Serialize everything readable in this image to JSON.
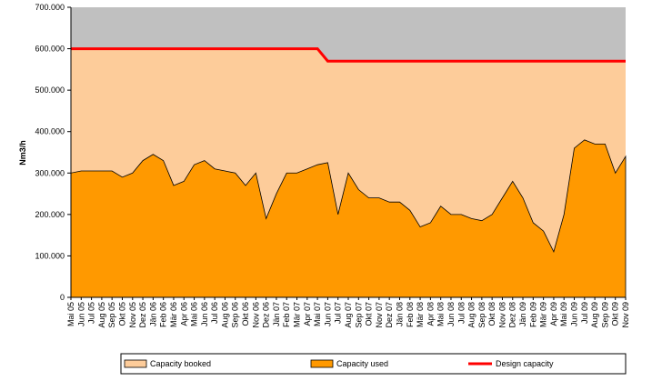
{
  "chart_data": {
    "type": "area",
    "y_label": "Nm3/h",
    "categories": [
      "Mai 05",
      "Jun 05",
      "Jul 05",
      "Aug 05",
      "Sep 05",
      "Okt 05",
      "Nov 05",
      "Dez 05",
      "Jän 06",
      "Feb 06",
      "Mär 06",
      "Apr 06",
      "Mai 06",
      "Jun 06",
      "Jul 06",
      "Aug 06",
      "Sep 06",
      "Okt 06",
      "Nov 06",
      "Dez 06",
      "Jän 07",
      "Feb 07",
      "Mär 07",
      "Apr 07",
      "Mai 07",
      "Jun 07",
      "Jul 07",
      "Aug 07",
      "Sep 07",
      "Okt 07",
      "Nov 07",
      "Dez 07",
      "Jän 08",
      "Feb 08",
      "Mär 08",
      "Apr 08",
      "Mai 08",
      "Jun 08",
      "Jul 08",
      "Aug 08",
      "Sep 08",
      "Okt 08",
      "Nov 08",
      "Dez 08",
      "Jän 09",
      "Feb 09",
      "Mär 09",
      "Apr 09",
      "Mai 09",
      "Jun 09",
      "Jul 09",
      "Aug 09",
      "Sep 09",
      "Okt 09",
      "Nov 09"
    ],
    "series": [
      {
        "name": "Capacity booked",
        "type": "area",
        "color": "#fdcc9a",
        "values": [
          600000,
          600000,
          600000,
          600000,
          600000,
          600000,
          600000,
          600000,
          600000,
          600000,
          600000,
          600000,
          600000,
          600000,
          600000,
          600000,
          600000,
          600000,
          600000,
          600000,
          600000,
          600000,
          600000,
          600000,
          600000,
          570000,
          570000,
          570000,
          570000,
          570000,
          570000,
          570000,
          570000,
          570000,
          570000,
          570000,
          570000,
          570000,
          570000,
          570000,
          570000,
          570000,
          570000,
          570000,
          570000,
          570000,
          570000,
          570000,
          570000,
          570000,
          570000,
          570000,
          570000,
          570000,
          570000
        ]
      },
      {
        "name": "Capacity used",
        "type": "area",
        "color": "#ff9900",
        "values": [
          300000,
          305000,
          305000,
          305000,
          305000,
          290000,
          300000,
          330000,
          345000,
          330000,
          270000,
          280000,
          320000,
          330000,
          310000,
          305000,
          300000,
          270000,
          300000,
          190000,
          250000,
          300000,
          300000,
          310000,
          320000,
          325000,
          200000,
          300000,
          260000,
          240000,
          240000,
          230000,
          230000,
          210000,
          170000,
          180000,
          220000,
          200000,
          200000,
          190000,
          185000,
          200000,
          240000,
          280000,
          240000,
          180000,
          160000,
          110000,
          200000,
          360000,
          380000,
          370000,
          370000,
          300000,
          340000
        ]
      },
      {
        "name": "Design capacity",
        "type": "line",
        "color": "#ff0000",
        "values": [
          600000,
          600000,
          600000,
          600000,
          600000,
          600000,
          600000,
          600000,
          600000,
          600000,
          600000,
          600000,
          600000,
          600000,
          600000,
          600000,
          600000,
          600000,
          600000,
          600000,
          600000,
          600000,
          600000,
          600000,
          600000,
          570000,
          570000,
          570000,
          570000,
          570000,
          570000,
          570000,
          570000,
          570000,
          570000,
          570000,
          570000,
          570000,
          570000,
          570000,
          570000,
          570000,
          570000,
          570000,
          570000,
          570000,
          570000,
          570000,
          570000,
          570000,
          570000,
          570000,
          570000,
          570000,
          570000
        ]
      }
    ],
    "ylim": [
      0,
      700000
    ],
    "yticks": [
      0,
      {
        "value": 100000,
        "label": "100.000"
      },
      {
        "value": 200000,
        "label": "200.000"
      },
      {
        "value": 300000,
        "label": "300.000"
      },
      {
        "value": 400000,
        "label": "400.000"
      },
      {
        "value": 500000,
        "label": "500.000"
      },
      {
        "value": 600000,
        "label": "600.000"
      },
      {
        "value": 700000,
        "label": "700.000"
      }
    ],
    "plot_background": "#c0c0c0"
  }
}
